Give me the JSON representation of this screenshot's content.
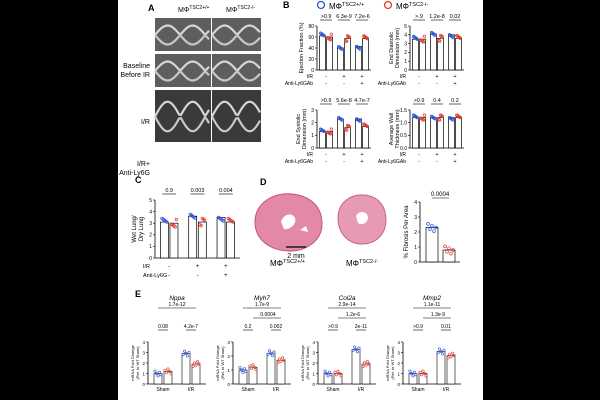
{
  "panels": {
    "A": {
      "letter": "A",
      "col_headers": [
        "MΦ",
        "MΦ"
      ],
      "col_sups": [
        "TSC2+/+",
        "TSC2-/-"
      ],
      "row_labels": [
        [
          "Baseline",
          "Before IR"
        ],
        [
          "I/R"
        ],
        [
          "I/R+",
          "Anti-Ly6G"
        ]
      ]
    },
    "B": {
      "letter": "B",
      "legend": [
        {
          "label": "MΦ",
          "sup": "TSC2+/+",
          "color": "#2f54d6"
        },
        {
          "label": "MΦ",
          "sup": "TSC2-/-",
          "color": "#e0392b"
        }
      ],
      "row_labels": [
        "I/R",
        "Anti-Ly6GAb"
      ],
      "conditions": [
        [
          "-",
          "-"
        ],
        [
          "+",
          "-"
        ],
        [
          "+",
          "+"
        ]
      ],
      "plots": [
        {
          "ylabel": [
            "Ejection Fraction (%)"
          ],
          "pvalues": [
            ">0.9",
            "6.3e-9",
            "7.2e-6"
          ],
          "ticks": [
            "0",
            "20",
            "40",
            "60",
            "80"
          ],
          "ymax": 80,
          "means": [
            [
              62,
              60
            ],
            [
              40,
              57
            ],
            [
              43,
              57
            ]
          ]
        },
        {
          "ylabel": [
            "End Diastolic",
            "Dimension (mm)"
          ],
          "pvalues": [
            ">.9",
            "1.2e-8",
            "0.02"
          ],
          "ticks": [
            "0",
            "1",
            "2",
            "3",
            "4",
            "5"
          ],
          "ymax": 5,
          "means": [
            [
              3.5,
              3.5
            ],
            [
              4.1,
              3.6
            ],
            [
              4.0,
              3.6
            ]
          ]
        },
        {
          "ylabel": [
            "End Systolic",
            "Dimension (mm)"
          ],
          "pvalues": [
            ">0.9",
            "5.6e-8",
            "4.7e-7"
          ],
          "ticks": [
            "0",
            "1",
            "2",
            "3"
          ],
          "ymax": 3,
          "means": [
            [
              1.3,
              1.3
            ],
            [
              2.3,
              1.6
            ],
            [
              2.3,
              1.7
            ]
          ]
        },
        {
          "ylabel": [
            "Average Wall",
            "Thickness (mm)"
          ],
          "pvalues": [
            ">0.9",
            "0.4",
            "0.2"
          ],
          "ticks": [
            "0.0",
            "0.5",
            "1.0",
            "1.5"
          ],
          "ymax": 1.5,
          "means": [
            [
              1.2,
              1.2
            ],
            [
              1.2,
              1.2
            ],
            [
              1.2,
              1.2
            ]
          ]
        }
      ]
    },
    "C": {
      "letter": "C",
      "ylabel": [
        "Wet Lung/",
        "Dry Lung"
      ],
      "ticks": [
        "0",
        "1",
        "2",
        "3",
        "4",
        "5"
      ],
      "ymax": 5,
      "pvalues": [
        "0.9",
        "0.003",
        "0.004"
      ],
      "row_labels": [
        "I/R",
        "Anti-Ly6G"
      ],
      "conditions": [
        [
          "-",
          "-"
        ],
        [
          "+",
          "-"
        ],
        [
          "+",
          "+"
        ]
      ],
      "means": [
        [
          3.1,
          3.0
        ],
        [
          3.6,
          3.1
        ],
        [
          3.5,
          3.1
        ]
      ]
    },
    "D": {
      "letter": "D",
      "label_left": "MΦ",
      "sup_left": "TSC2+/+",
      "label_right": "MΦ",
      "sup_right": "TSC2-/-",
      "scale": "2 mm",
      "ylabel": "% Fibrosis Per Area",
      "ticks": [
        "0",
        "1",
        "2",
        "3",
        "4"
      ],
      "ymax": 4,
      "pvalue": "0.0004",
      "means": [
        2.3,
        0.8
      ]
    },
    "E": {
      "letter": "E",
      "ylabel": [
        "mRNA Fold Change",
        "(Rel. to WT Sham)"
      ],
      "xcats": [
        "Sham",
        "I/R"
      ],
      "genes": [
        {
          "name": "Nppa",
          "ticks": [
            "0",
            "1",
            "2",
            "3",
            "4"
          ],
          "ymax": 4,
          "p_top": "1.7e-12",
          "p_left": "0.08",
          "p_right": "4.2e-7",
          "means": [
            [
              1.0,
              1.2
            ],
            [
              2.9,
              1.9
            ]
          ]
        },
        {
          "name": "Myh7",
          "ticks": [
            "0",
            "1",
            "2",
            "3"
          ],
          "ymax": 3,
          "p_top": "1.7e-9",
          "p_mid": "0.0004",
          "p_left": "0.2",
          "p_right": "0.002",
          "means": [
            [
              1.0,
              1.2
            ],
            [
              2.2,
              1.7
            ]
          ]
        },
        {
          "name": "Col2a",
          "ticks": [
            "0",
            "1",
            "2",
            "3",
            "4"
          ],
          "ymax": 4,
          "p_top": "2.9e-14",
          "p_mid": "1.2e-6",
          "p_left": ">0.9",
          "p_right": "2e-11",
          "means": [
            [
              1.0,
              1.0
            ],
            [
              3.3,
              1.9
            ]
          ]
        },
        {
          "name": "Mmp2",
          "ticks": [
            "0",
            "1",
            "2",
            "3",
            "4"
          ],
          "ymax": 4,
          "p_top": "1.1e-11",
          "p_mid": "1.3e-9",
          "p_left": ">0.9",
          "p_right": "0.01",
          "means": [
            [
              1.0,
              1.0
            ],
            [
              3.1,
              2.7
            ]
          ]
        }
      ]
    }
  }
}
